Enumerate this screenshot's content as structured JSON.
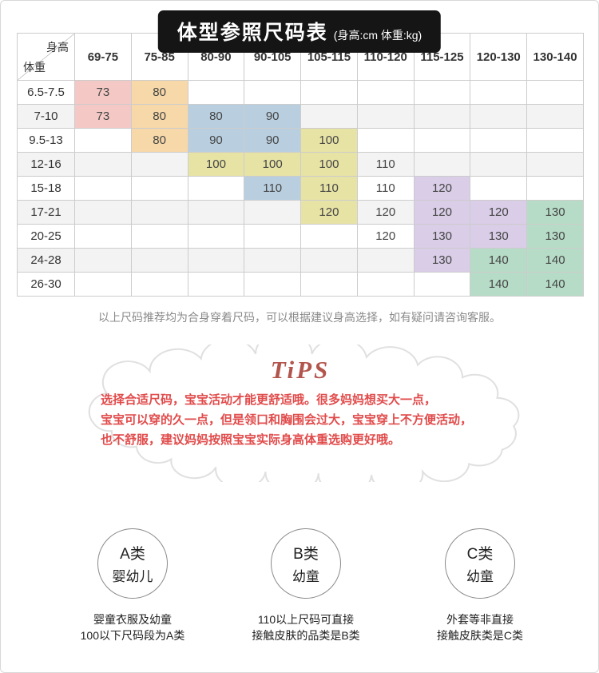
{
  "title": {
    "main": "体型参照尺码表",
    "sub": "(身高:cm 体重:kg)"
  },
  "table": {
    "corner": {
      "top_right": "身高",
      "bottom_left": "体重"
    },
    "height_headers": [
      "69-75",
      "75-85",
      "80-90",
      "90-105",
      "105-115",
      "110-120",
      "115-125",
      "120-130",
      "130-140"
    ],
    "weight_rows": [
      {
        "label": "6.5-7.5",
        "cells": [
          {
            "col": 0,
            "value": "73",
            "band": "pink"
          },
          {
            "col": 1,
            "value": "80",
            "band": "orange"
          }
        ]
      },
      {
        "label": "7-10",
        "cells": [
          {
            "col": 0,
            "value": "73",
            "band": "pink"
          },
          {
            "col": 1,
            "value": "80",
            "band": "orange"
          },
          {
            "col": 2,
            "value": "80",
            "band": "blue"
          },
          {
            "col": 3,
            "value": "90",
            "band": "blue"
          }
        ]
      },
      {
        "label": "9.5-13",
        "cells": [
          {
            "col": 1,
            "value": "80",
            "band": "orange"
          },
          {
            "col": 2,
            "value": "90",
            "band": "blue"
          },
          {
            "col": 3,
            "value": "90",
            "band": "blue"
          },
          {
            "col": 4,
            "value": "100",
            "band": "yellow"
          }
        ]
      },
      {
        "label": "12-16",
        "cells": [
          {
            "col": 2,
            "value": "100",
            "band": "yellow"
          },
          {
            "col": 3,
            "value": "100",
            "band": "yellow"
          },
          {
            "col": 4,
            "value": "100",
            "band": "yellow"
          },
          {
            "col": 5,
            "value": "110",
            "band": null
          }
        ]
      },
      {
        "label": "15-18",
        "cells": [
          {
            "col": 3,
            "value": "110",
            "band": "blue"
          },
          {
            "col": 4,
            "value": "110",
            "band": "yellow"
          },
          {
            "col": 5,
            "value": "110",
            "band": null
          },
          {
            "col": 6,
            "value": "120",
            "band": "purple"
          }
        ]
      },
      {
        "label": "17-21",
        "cells": [
          {
            "col": 4,
            "value": "120",
            "band": "yellow"
          },
          {
            "col": 5,
            "value": "120",
            "band": null
          },
          {
            "col": 6,
            "value": "120",
            "band": "purple"
          },
          {
            "col": 7,
            "value": "120",
            "band": "purple"
          },
          {
            "col": 8,
            "value": "130",
            "band": "green"
          }
        ]
      },
      {
        "label": "20-25",
        "cells": [
          {
            "col": 5,
            "value": "120",
            "band": null
          },
          {
            "col": 6,
            "value": "130",
            "band": "purple"
          },
          {
            "col": 7,
            "value": "130",
            "band": "purple"
          },
          {
            "col": 8,
            "value": "130",
            "band": "green"
          }
        ]
      },
      {
        "label": "24-28",
        "cells": [
          {
            "col": 6,
            "value": "130",
            "band": "purple"
          },
          {
            "col": 7,
            "value": "140",
            "band": "green"
          },
          {
            "col": 8,
            "value": "140",
            "band": "green"
          }
        ]
      },
      {
        "label": "26-30",
        "cells": [
          {
            "col": 7,
            "value": "140",
            "band": "green"
          },
          {
            "col": 8,
            "value": "140",
            "band": "green"
          }
        ]
      }
    ]
  },
  "note": "以上尺码推荐均为合身穿着尺码，可以根据建议身高选择，如有疑问请咨询客服。",
  "tips": {
    "logo": "TiPS",
    "text": "选择合适尺码，宝宝活动才能更舒适哦。很多妈妈想买大一点，\n宝宝可以穿的久一点，但是领口和胸围会过大，宝宝穿上不方便活动，\n也不舒服，建议妈妈按照宝宝实际身高体重选购更好哦。"
  },
  "categories": [
    {
      "name": "A类",
      "sub": "婴幼儿",
      "desc_line1": "婴童衣服及幼童",
      "desc_line2": "100以下尺码段为A类"
    },
    {
      "name": "B类",
      "sub": "幼童",
      "desc_line1": "110以上尺码可直接",
      "desc_line2": "接触皮肤的品类是B类"
    },
    {
      "name": "C类",
      "sub": "幼童",
      "desc_line1": "外套等非直接",
      "desc_line2": "接触皮肤类是C类"
    }
  ],
  "colors": {
    "band_pink": "#f4c9c5",
    "band_orange": "#f6d8a9",
    "band_blue": "#b9cfe0",
    "band_yellow": "#e7e3a5",
    "band_purple": "#d9cde7",
    "band_green": "#b6dcc7",
    "row_stripe": "#f3f3f3",
    "accent_red": "#e14b4b",
    "tips_logo_color": "#b2564d",
    "title_bg": "#151515"
  }
}
